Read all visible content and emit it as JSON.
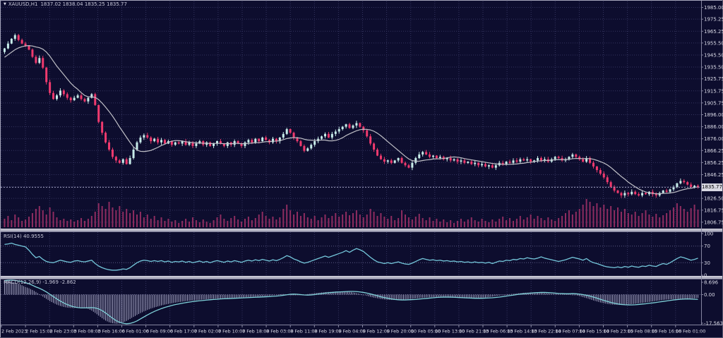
{
  "window": {
    "marker": "▼",
    "symbol_period": "XAUUSD,H1",
    "ohlc": "1837.02 1838.04 1835.25 1835.77"
  },
  "indicators": {
    "rsi": {
      "label": "RSI(14) 40.9555"
    },
    "macd": {
      "label": "MACD(12,26,9) -1.969 -2.862"
    }
  },
  "axes": {
    "current_price": "1835.77",
    "price_labels": [
      "1985.00",
      "1975.25",
      "1965.25",
      "1955.50",
      "1945.50",
      "1935.50",
      "1925.75",
      "1915.75",
      "1905.75",
      "1896.00",
      "1886.00",
      "1876.00",
      "1866.25",
      "1856.25",
      "1846.25",
      "1826.50",
      "1816.75",
      "1806.75"
    ],
    "rsi_labels": [
      "100",
      "70",
      "30",
      "0"
    ],
    "macd_labels": [
      "8.696",
      "0.00",
      "-17.563"
    ],
    "time_labels": [
      "2 Feb 2023",
      "2 Feb 15:00",
      "2 Feb 23:00",
      "3 Feb 08:00",
      "3 Feb 16:00",
      "6 Feb 01:00",
      "6 Feb 09:00",
      "6 Feb 17:00",
      "7 Feb 02:00",
      "7 Feb 10:00",
      "7 Feb 18:00",
      "8 Feb 03:00",
      "8 Feb 11:00",
      "8 Feb 19:00",
      "9 Feb 04:00",
      "9 Feb 12:00",
      "9 Feb 20:00",
      "10 Feb 05:00",
      "10 Feb 13:00",
      "10 Feb 21:00",
      "13 Feb 06:00",
      "13 Feb 14:00",
      "13 Feb 22:00",
      "14 Feb 07:00",
      "14 Feb 15:00",
      "14 Feb 23:00",
      "15 Feb 08:00",
      "15 Feb 16:00",
      "16 Feb 01:00"
    ]
  },
  "colors": {
    "bg": "#0d0d2e",
    "grid": "#34345f",
    "bull": "#c7ece9",
    "bear": "#f03a6e",
    "ma": "#bfbfc6",
    "volume": "#8e2c60",
    "rsi_line": "#74c6da",
    "macd_line": "#7fd0d8",
    "macd_hist": "#a4a4c2",
    "axis_text": "#d9d9e6",
    "axis_line": "#8585a0",
    "separator": "#b3b3c3",
    "level_line": "#5a5a82",
    "price_line": "#9f9fbe",
    "tag_bg": "#d9d9e3",
    "tag_text": "#000000"
  },
  "chart_data": {
    "type": "candlestick",
    "symbol": "XAUUSD",
    "timeframe": "H1",
    "x_range": [
      "2 Feb 2023",
      "16 Feb 01:00"
    ],
    "main": {
      "ylim": [
        1802,
        1990
      ],
      "grid_prices": [
        1985.0,
        1975.25,
        1965.25,
        1955.5,
        1945.5,
        1935.5,
        1925.75,
        1915.75,
        1905.75,
        1896.0,
        1886.0,
        1876.0,
        1866.25,
        1856.25,
        1846.25,
        1836.25,
        1826.5,
        1816.75,
        1806.75
      ],
      "current_price": 1835.77,
      "ma_seed": [
        1930,
        1934,
        1937,
        1940,
        1943,
        1945,
        1947,
        1948,
        1949,
        1950,
        1950
      ],
      "closes": [
        1951,
        1955,
        1959,
        1962,
        1958,
        1955,
        1953,
        1950,
        1944,
        1939,
        1943,
        1935,
        1923,
        1914,
        1909,
        1912,
        1916,
        1913,
        1910,
        1908,
        1910,
        1912,
        1909,
        1907,
        1910,
        1913,
        1904,
        1890,
        1881,
        1873,
        1867,
        1861,
        1858,
        1856,
        1859,
        1855,
        1860,
        1867,
        1873,
        1877,
        1879,
        1877,
        1874,
        1876,
        1873,
        1875,
        1872,
        1874,
        1871,
        1873,
        1872,
        1874,
        1871,
        1873,
        1870,
        1872,
        1874,
        1871,
        1873,
        1870,
        1872,
        1874,
        1872,
        1870,
        1873,
        1871,
        1874,
        1872,
        1870,
        1873,
        1875,
        1873,
        1876,
        1874,
        1877,
        1875,
        1873,
        1876,
        1874,
        1877,
        1880,
        1884,
        1881,
        1877,
        1874,
        1870,
        1866,
        1868,
        1871,
        1874,
        1876,
        1878,
        1880,
        1877,
        1880,
        1882,
        1884,
        1886,
        1888,
        1885,
        1887,
        1889,
        1886,
        1883,
        1878,
        1872,
        1867,
        1862,
        1859,
        1857,
        1858,
        1856,
        1858,
        1860,
        1856,
        1854,
        1852,
        1856,
        1860,
        1863,
        1865,
        1863,
        1861,
        1862,
        1860,
        1861,
        1859,
        1860,
        1858,
        1859,
        1857,
        1858,
        1856,
        1857,
        1855,
        1856,
        1854,
        1855,
        1853,
        1854,
        1852,
        1854,
        1856,
        1855,
        1857,
        1856,
        1858,
        1857,
        1859,
        1858,
        1859,
        1857,
        1858,
        1860,
        1858,
        1859,
        1857,
        1859,
        1861,
        1860,
        1858,
        1859,
        1861,
        1863,
        1861,
        1859,
        1857,
        1860,
        1856,
        1853,
        1850,
        1847,
        1844,
        1840,
        1836,
        1833,
        1831,
        1829,
        1831,
        1830,
        1832,
        1830,
        1829,
        1831,
        1830,
        1832,
        1830,
        1829,
        1831,
        1833,
        1832,
        1834,
        1836,
        1839,
        1841,
        1840,
        1838,
        1836,
        1837,
        1835.77
      ],
      "volumes": [
        12,
        16,
        10,
        18,
        14,
        9,
        11,
        15,
        20,
        26,
        30,
        24,
        18,
        28,
        22,
        14,
        10,
        12,
        9,
        11,
        8,
        10,
        13,
        9,
        12,
        16,
        22,
        34,
        30,
        26,
        36,
        28,
        24,
        30,
        22,
        26,
        20,
        24,
        18,
        22,
        14,
        18,
        12,
        16,
        10,
        14,
        9,
        12,
        8,
        10,
        6,
        9,
        12,
        8,
        14,
        10,
        7,
        11,
        8,
        6,
        10,
        14,
        18,
        12,
        9,
        13,
        16,
        11,
        8,
        12,
        15,
        10,
        13,
        18,
        22,
        16,
        12,
        15,
        11,
        14,
        26,
        32,
        24,
        18,
        22,
        16,
        20,
        14,
        12,
        16,
        10,
        14,
        18,
        13,
        16,
        20,
        15,
        18,
        22,
        17,
        20,
        24,
        18,
        14,
        18,
        26,
        22,
        16,
        20,
        15,
        12,
        16,
        10,
        13,
        24,
        18,
        14,
        11,
        15,
        19,
        13,
        10,
        14,
        9,
        12,
        8,
        11,
        7,
        10,
        6,
        9,
        12,
        8,
        11,
        14,
        10,
        8,
        12,
        9,
        7,
        11,
        8,
        12,
        15,
        10,
        13,
        9,
        12,
        16,
        11,
        14,
        18,
        12,
        16,
        13,
        10,
        14,
        11,
        9,
        13,
        16,
        20,
        24,
        18,
        22,
        26,
        32,
        40,
        36,
        30,
        34,
        28,
        32,
        26,
        30,
        24,
        28,
        22,
        26,
        20,
        18,
        22,
        16,
        20,
        24,
        18,
        15,
        19,
        14,
        17,
        20,
        24,
        28,
        34,
        30,
        26,
        22,
        27,
        32,
        25
      ]
    },
    "rsi": {
      "ylim": [
        0,
        100
      ],
      "levels": [
        70,
        30
      ],
      "last_value": 40.9555,
      "values": [
        74,
        75,
        77,
        74,
        72,
        70,
        68,
        60,
        50,
        42,
        45,
        38,
        33,
        31,
        30,
        33,
        36,
        34,
        32,
        31,
        34,
        35,
        33,
        32,
        34,
        36,
        28,
        22,
        18,
        15,
        13,
        12,
        12,
        13,
        15,
        14,
        18,
        24,
        30,
        34,
        36,
        35,
        33,
        35,
        33,
        35,
        32,
        34,
        31,
        33,
        32,
        34,
        31,
        33,
        30,
        32,
        34,
        31,
        33,
        30,
        33,
        35,
        33,
        31,
        34,
        32,
        35,
        33,
        31,
        34,
        36,
        34,
        37,
        35,
        38,
        36,
        34,
        37,
        35,
        38,
        42,
        47,
        44,
        39,
        36,
        32,
        29,
        31,
        34,
        37,
        40,
        43,
        46,
        43,
        46,
        49,
        52,
        55,
        59,
        55,
        60,
        64,
        61,
        57,
        50,
        43,
        37,
        32,
        30,
        28,
        30,
        28,
        30,
        32,
        29,
        27,
        26,
        29,
        33,
        37,
        40,
        38,
        36,
        37,
        35,
        36,
        34,
        35,
        33,
        34,
        32,
        33,
        31,
        32,
        30,
        32,
        30,
        31,
        29,
        31,
        28,
        31,
        34,
        33,
        36,
        35,
        38,
        37,
        40,
        39,
        42,
        40,
        39,
        41,
        44,
        41,
        39,
        37,
        35,
        33,
        35,
        37,
        40,
        43,
        41,
        39,
        36,
        40,
        34,
        30,
        28,
        25,
        22,
        20,
        19,
        18,
        20,
        18,
        21,
        19,
        22,
        20,
        19,
        22,
        21,
        24,
        22,
        21,
        25,
        28,
        26,
        30,
        35,
        40,
        44,
        42,
        39,
        36,
        38,
        40.96
      ]
    },
    "macd": {
      "ylim": [
        -17.563,
        8.696
      ],
      "last_line": -2.862,
      "last_histogram": -1.969,
      "line": [
        8.4,
        8.6,
        8.7,
        8.5,
        8.2,
        7.8,
        7.2,
        6.5,
        5.6,
        4.6,
        3.8,
        2.8,
        1.6,
        0.2,
        -1.2,
        -2.6,
        -3.9,
        -5.0,
        -6.0,
        -6.8,
        -7.4,
        -7.8,
        -8.0,
        -8.0,
        -7.9,
        -7.8,
        -8.0,
        -8.6,
        -9.6,
        -11.0,
        -12.6,
        -14.2,
        -15.6,
        -16.6,
        -17.2,
        -17.5,
        -17.3,
        -16.7,
        -15.8,
        -14.6,
        -13.4,
        -12.2,
        -11.1,
        -10.1,
        -9.2,
        -8.4,
        -7.7,
        -7.1,
        -6.5,
        -6.0,
        -5.6,
        -5.2,
        -4.8,
        -4.5,
        -4.2,
        -3.9,
        -3.7,
        -3.5,
        -3.3,
        -3.1,
        -2.9,
        -2.8,
        -2.6,
        -2.5,
        -2.4,
        -2.3,
        -2.2,
        -2.1,
        -2.0,
        -1.9,
        -1.8,
        -1.7,
        -1.6,
        -1.5,
        -1.4,
        -1.3,
        -1.2,
        -1.0,
        -0.9,
        -0.7,
        -0.4,
        -0.1,
        0.2,
        0.3,
        0.2,
        0.0,
        -0.2,
        -0.3,
        -0.2,
        0.0,
        0.3,
        0.6,
        0.9,
        1.1,
        1.3,
        1.5,
        1.6,
        1.7,
        1.8,
        1.9,
        1.9,
        1.8,
        1.6,
        1.3,
        0.9,
        0.4,
        -0.1,
        -0.7,
        -1.3,
        -1.8,
        -2.2,
        -2.6,
        -2.9,
        -3.1,
        -3.2,
        -3.2,
        -3.1,
        -3.0,
        -2.9,
        -2.7,
        -2.5,
        -2.3,
        -2.1,
        -1.9,
        -1.7,
        -1.6,
        -1.5,
        -1.5,
        -1.5,
        -1.6,
        -1.7,
        -1.8,
        -1.9,
        -2.0,
        -2.1,
        -2.2,
        -2.2,
        -2.2,
        -2.1,
        -2.0,
        -1.9,
        -1.7,
        -1.5,
        -1.2,
        -0.9,
        -0.6,
        -0.3,
        0.0,
        0.3,
        0.5,
        0.7,
        0.9,
        1.1,
        1.2,
        1.3,
        1.3,
        1.2,
        1.1,
        0.9,
        0.7,
        0.6,
        0.5,
        0.5,
        0.6,
        0.5,
        0.3,
        0.0,
        -0.4,
        -0.9,
        -1.5,
        -2.1,
        -2.8,
        -3.5,
        -4.1,
        -4.7,
        -5.2,
        -5.6,
        -5.9,
        -6.1,
        -6.2,
        -6.2,
        -6.1,
        -5.9,
        -5.7,
        -5.5,
        -5.2,
        -5.0,
        -4.7,
        -4.4,
        -4.1,
        -3.8,
        -3.5,
        -3.2,
        -3.0,
        -2.8,
        -2.7,
        -2.6,
        -2.7,
        -2.8,
        -2.862
      ],
      "histogram": [
        8.5,
        8.2,
        7.8,
        7.2,
        6.5,
        5.6,
        4.6,
        3.8,
        2.8,
        1.6,
        0.2,
        -1.2,
        -2.6,
        -3.9,
        -5.0,
        -6.0,
        -6.8,
        -7.4,
        -7.8,
        -8.0,
        -8.0,
        -7.9,
        -7.8,
        -8.0,
        -8.6,
        -9.6,
        -11.0,
        -12.6,
        -14.2,
        -15.6,
        -16.6,
        -17.2,
        -17.5,
        -17.3,
        -16.7,
        -15.8,
        -14.6,
        -13.4,
        -12.2,
        -11.1,
        -10.1,
        -9.2,
        -8.4,
        -7.7,
        -7.1,
        -6.5,
        -6.0,
        -5.6,
        -5.2,
        -4.8,
        -4.5,
        -4.2,
        -3.9,
        -3.7,
        -3.5,
        -3.3,
        -3.1,
        -2.9,
        -2.8,
        -2.6,
        -2.5,
        -2.4,
        -2.3,
        -2.2,
        -2.1,
        -2.0,
        -1.9,
        -1.8,
        -1.7,
        -1.6,
        -1.5,
        -1.4,
        -1.3,
        -1.2,
        -1.0,
        -0.9,
        -0.7,
        -0.4,
        -0.1,
        0.2,
        0.3,
        0.2,
        0.0,
        -0.2,
        -0.3,
        -0.2,
        0.0,
        0.3,
        0.6,
        0.9,
        1.1,
        1.3,
        1.5,
        1.6,
        1.7,
        1.8,
        1.9,
        1.9,
        1.8,
        1.6,
        1.3,
        0.9,
        0.4,
        -0.1,
        -0.7,
        -1.3,
        -1.8,
        -2.2,
        -2.6,
        -2.9,
        -3.1,
        -3.2,
        -3.2,
        -3.1,
        -3.0,
        -2.9,
        -2.7,
        -2.5,
        -2.3,
        -2.1,
        -1.9,
        -1.7,
        -1.6,
        -1.5,
        -1.5,
        -1.5,
        -1.6,
        -1.7,
        -1.8,
        -1.9,
        -2.0,
        -2.1,
        -2.2,
        -2.2,
        -2.2,
        -2.1,
        -2.0,
        -1.9,
        -1.7,
        -1.5,
        -1.2,
        -0.9,
        -0.6,
        -0.3,
        0.0,
        0.3,
        0.5,
        0.7,
        0.9,
        1.1,
        1.2,
        1.3,
        1.3,
        1.2,
        1.1,
        0.9,
        0.7,
        0.6,
        0.5,
        0.5,
        0.6,
        0.5,
        0.3,
        0.0,
        -0.4,
        -0.9,
        -1.5,
        -2.1,
        -2.8,
        -3.5,
        -4.1,
        -4.7,
        -5.2,
        -5.6,
        -5.9,
        -6.1,
        -6.2,
        -6.2,
        -6.1,
        -5.9,
        -5.7,
        -5.5,
        -5.2,
        -5.0,
        -4.7,
        -4.4,
        -4.1,
        -3.8,
        -3.5,
        -3.2,
        -3.0,
        -2.8,
        -2.7,
        -2.6,
        -2.7,
        -2.8,
        -2.9,
        -2.6,
        -2.3,
        -1.969
      ]
    }
  }
}
